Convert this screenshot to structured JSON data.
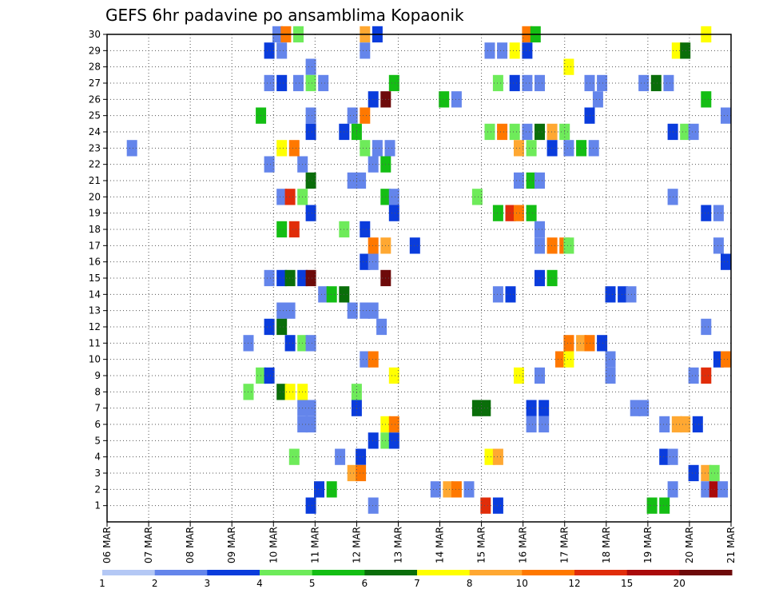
{
  "chart_data": {
    "type": "heatmap",
    "title": "GEFS 6hr padavine po ansamblima Kopaonik",
    "xlabel": "",
    "ylabel": "",
    "x_ticks": [
      "06 MAR",
      "07 MAR",
      "08 MAR",
      "09 MAR",
      "10 MAR",
      "11 MAR",
      "12 MAR",
      "13 MAR",
      "14 MAR",
      "15 MAR",
      "16 MAR",
      "17 MAR",
      "18 MAR",
      "19 MAR",
      "20 MAR",
      "21 MAR"
    ],
    "y_ticks": [
      "1",
      "2",
      "3",
      "4",
      "5",
      "6",
      "7",
      "8",
      "9",
      "10",
      "11",
      "12",
      "13",
      "14",
      "15",
      "16",
      "17",
      "18",
      "19",
      "20",
      "21",
      "22",
      "23",
      "24",
      "25",
      "26",
      "27",
      "28",
      "29",
      "30"
    ],
    "ylim": [
      0,
      30
    ],
    "grid": true,
    "colorbar": {
      "labels": [
        "1",
        "2",
        "3",
        "4",
        "5",
        "6",
        "7",
        "8",
        "10",
        "12",
        "15",
        "20"
      ],
      "colors": [
        "#b4c8f5",
        "#6485eb",
        "#0a3cdc",
        "#6eeb5a",
        "#14be14",
        "#0a6e0a",
        "#ffff00",
        "#ffa832",
        "#ff7800",
        "#e12d0a",
        "#aa0a0a",
        "#6e0a0a"
      ]
    },
    "cells": [
      [
        10.1,
        30,
        1
      ],
      [
        10.3,
        30,
        8
      ],
      [
        10.6,
        30,
        3
      ],
      [
        12.2,
        30,
        7
      ],
      [
        12.5,
        30,
        2
      ],
      [
        16.1,
        30,
        8
      ],
      [
        16.3,
        30,
        4
      ],
      [
        20.4,
        30,
        6
      ],
      [
        9.9,
        29,
        2
      ],
      [
        10.2,
        29,
        1
      ],
      [
        12.2,
        29,
        1
      ],
      [
        15.2,
        29,
        1
      ],
      [
        15.5,
        29,
        1
      ],
      [
        15.8,
        29,
        6
      ],
      [
        16.1,
        29,
        2
      ],
      [
        19.7,
        29,
        6
      ],
      [
        19.9,
        29,
        5
      ],
      [
        10.9,
        28,
        1
      ],
      [
        17.1,
        28,
        6
      ],
      [
        9.9,
        27,
        1
      ],
      [
        10.2,
        27,
        2
      ],
      [
        10.6,
        27,
        1
      ],
      [
        10.9,
        27,
        3
      ],
      [
        11.2,
        27,
        1
      ],
      [
        12.9,
        27,
        4
      ],
      [
        15.4,
        27,
        3
      ],
      [
        15.8,
        27,
        2
      ],
      [
        16.1,
        27,
        1
      ],
      [
        16.4,
        27,
        1
      ],
      [
        17.6,
        27,
        1
      ],
      [
        17.9,
        27,
        1
      ],
      [
        18.9,
        27,
        1
      ],
      [
        19.2,
        27,
        5
      ],
      [
        19.5,
        27,
        1
      ],
      [
        12.4,
        26,
        2
      ],
      [
        12.7,
        26,
        11
      ],
      [
        14.1,
        26,
        4
      ],
      [
        14.4,
        26,
        1
      ],
      [
        17.8,
        26,
        1
      ],
      [
        20.4,
        26,
        4
      ],
      [
        9.7,
        25,
        4
      ],
      [
        10.9,
        25,
        1
      ],
      [
        11.9,
        25,
        1
      ],
      [
        12.2,
        25,
        8
      ],
      [
        17.6,
        25,
        2
      ],
      [
        21.0,
        25,
        1
      ],
      [
        10.9,
        24,
        2
      ],
      [
        11.7,
        24,
        2
      ],
      [
        12.0,
        24,
        4
      ],
      [
        15.2,
        24,
        3
      ],
      [
        15.5,
        24,
        8
      ],
      [
        15.8,
        24,
        3
      ],
      [
        16.1,
        24,
        1
      ],
      [
        16.4,
        24,
        5
      ],
      [
        16.7,
        24,
        7
      ],
      [
        17.0,
        24,
        3
      ],
      [
        19.6,
        24,
        2
      ],
      [
        19.9,
        24,
        3
      ],
      [
        20.1,
        24,
        1
      ],
      [
        6.6,
        23,
        1
      ],
      [
        10.2,
        23,
        6
      ],
      [
        10.5,
        23,
        8
      ],
      [
        12.2,
        23,
        3
      ],
      [
        12.5,
        23,
        1
      ],
      [
        12.8,
        23,
        1
      ],
      [
        15.9,
        23,
        7
      ],
      [
        16.2,
        23,
        3
      ],
      [
        16.7,
        23,
        2
      ],
      [
        17.1,
        23,
        1
      ],
      [
        17.4,
        23,
        4
      ],
      [
        17.7,
        23,
        1
      ],
      [
        9.9,
        22,
        1
      ],
      [
        10.7,
        22,
        1
      ],
      [
        12.4,
        22,
        1
      ],
      [
        12.7,
        22,
        4
      ],
      [
        10.9,
        21,
        5
      ],
      [
        11.9,
        21,
        1
      ],
      [
        12.1,
        21,
        1
      ],
      [
        15.9,
        21,
        1
      ],
      [
        16.2,
        21,
        4
      ],
      [
        16.4,
        21,
        1
      ],
      [
        10.2,
        20,
        1
      ],
      [
        10.4,
        20,
        9
      ],
      [
        10.7,
        20,
        3
      ],
      [
        12.7,
        20,
        4
      ],
      [
        12.9,
        20,
        1
      ],
      [
        14.9,
        20,
        3
      ],
      [
        19.6,
        20,
        1
      ],
      [
        10.9,
        19,
        2
      ],
      [
        12.9,
        19,
        2
      ],
      [
        15.4,
        19,
        4
      ],
      [
        15.7,
        19,
        9
      ],
      [
        15.9,
        19,
        8
      ],
      [
        16.2,
        19,
        4
      ],
      [
        20.4,
        19,
        2
      ],
      [
        20.7,
        19,
        1
      ],
      [
        10.2,
        18,
        4
      ],
      [
        10.5,
        18,
        9
      ],
      [
        11.7,
        18,
        3
      ],
      [
        12.2,
        18,
        2
      ],
      [
        16.4,
        18,
        1
      ],
      [
        12.4,
        17,
        8
      ],
      [
        12.7,
        17,
        7
      ],
      [
        13.4,
        17,
        2
      ],
      [
        16.4,
        17,
        1
      ],
      [
        16.7,
        17,
        8
      ],
      [
        17.0,
        17,
        8
      ],
      [
        17.1,
        17,
        3
      ],
      [
        20.7,
        17,
        1
      ],
      [
        12.2,
        16,
        2
      ],
      [
        12.4,
        16,
        1
      ],
      [
        21.0,
        16,
        2
      ],
      [
        9.9,
        15,
        1
      ],
      [
        10.2,
        15,
        2
      ],
      [
        10.4,
        15,
        5
      ],
      [
        10.7,
        15,
        2
      ],
      [
        10.9,
        15,
        11
      ],
      [
        12.7,
        15,
        11
      ],
      [
        16.4,
        15,
        2
      ],
      [
        16.7,
        15,
        4
      ],
      [
        11.2,
        14,
        1
      ],
      [
        11.4,
        14,
        4
      ],
      [
        11.7,
        14,
        5
      ],
      [
        15.4,
        14,
        1
      ],
      [
        15.7,
        14,
        2
      ],
      [
        18.1,
        14,
        2
      ],
      [
        18.4,
        14,
        2
      ],
      [
        18.6,
        14,
        1
      ],
      [
        10.2,
        13,
        1
      ],
      [
        10.4,
        13,
        1
      ],
      [
        11.9,
        13,
        1
      ],
      [
        12.2,
        13,
        1
      ],
      [
        12.4,
        13,
        1
      ],
      [
        9.9,
        12,
        2
      ],
      [
        10.2,
        12,
        5
      ],
      [
        12.6,
        12,
        1
      ],
      [
        20.4,
        12,
        1
      ],
      [
        9.4,
        11,
        1
      ],
      [
        10.4,
        11,
        2
      ],
      [
        10.7,
        11,
        3
      ],
      [
        10.9,
        11,
        1
      ],
      [
        17.1,
        11,
        8
      ],
      [
        17.4,
        11,
        7
      ],
      [
        17.6,
        11,
        8
      ],
      [
        17.9,
        11,
        2
      ],
      [
        12.2,
        10,
        1
      ],
      [
        12.4,
        10,
        8
      ],
      [
        16.9,
        10,
        8
      ],
      [
        17.1,
        10,
        6
      ],
      [
        18.1,
        10,
        1
      ],
      [
        20.7,
        10,
        2
      ],
      [
        20.9,
        10,
        8
      ],
      [
        9.7,
        9,
        3
      ],
      [
        9.9,
        9,
        2
      ],
      [
        12.9,
        9,
        6
      ],
      [
        15.9,
        9,
        6
      ],
      [
        16.4,
        9,
        1
      ],
      [
        18.1,
        9,
        1
      ],
      [
        20.1,
        9,
        1
      ],
      [
        20.4,
        9,
        9
      ],
      [
        9.4,
        8,
        3
      ],
      [
        10.2,
        8,
        5
      ],
      [
        10.4,
        8,
        6
      ],
      [
        10.7,
        8,
        6
      ],
      [
        12.0,
        8,
        3
      ],
      [
        10.7,
        7,
        1
      ],
      [
        10.9,
        7,
        1
      ],
      [
        12.0,
        7,
        2
      ],
      [
        14.9,
        7,
        5
      ],
      [
        15.1,
        7,
        5
      ],
      [
        16.2,
        7,
        2
      ],
      [
        16.5,
        7,
        2
      ],
      [
        18.7,
        7,
        1
      ],
      [
        18.9,
        7,
        1
      ],
      [
        10.7,
        6,
        1
      ],
      [
        10.9,
        6,
        1
      ],
      [
        12.7,
        6,
        6
      ],
      [
        12.9,
        6,
        8
      ],
      [
        16.2,
        6,
        1
      ],
      [
        16.5,
        6,
        1
      ],
      [
        19.4,
        6,
        1
      ],
      [
        19.7,
        6,
        7
      ],
      [
        19.9,
        6,
        7
      ],
      [
        20.2,
        6,
        2
      ],
      [
        12.4,
        5,
        2
      ],
      [
        12.7,
        5,
        3
      ],
      [
        12.9,
        5,
        2
      ],
      [
        10.5,
        4,
        3
      ],
      [
        11.6,
        4,
        1
      ],
      [
        12.1,
        4,
        2
      ],
      [
        15.2,
        4,
        6
      ],
      [
        15.4,
        4,
        7
      ],
      [
        19.4,
        4,
        2
      ],
      [
        19.6,
        4,
        1
      ],
      [
        11.9,
        3,
        7
      ],
      [
        12.1,
        3,
        8
      ],
      [
        20.1,
        3,
        2
      ],
      [
        20.4,
        3,
        7
      ],
      [
        20.6,
        3,
        3
      ],
      [
        11.1,
        2,
        2
      ],
      [
        11.4,
        2,
        4
      ],
      [
        13.9,
        2,
        1
      ],
      [
        14.2,
        2,
        7
      ],
      [
        14.4,
        2,
        8
      ],
      [
        14.7,
        2,
        1
      ],
      [
        19.6,
        2,
        1
      ],
      [
        20.4,
        2,
        1
      ],
      [
        20.6,
        2,
        10
      ],
      [
        20.8,
        2,
        1
      ],
      [
        10.9,
        1,
        2
      ],
      [
        12.4,
        1,
        1
      ],
      [
        15.1,
        1,
        9
      ],
      [
        15.4,
        1,
        2
      ],
      [
        19.1,
        1,
        4
      ],
      [
        19.4,
        1,
        4
      ]
    ]
  }
}
